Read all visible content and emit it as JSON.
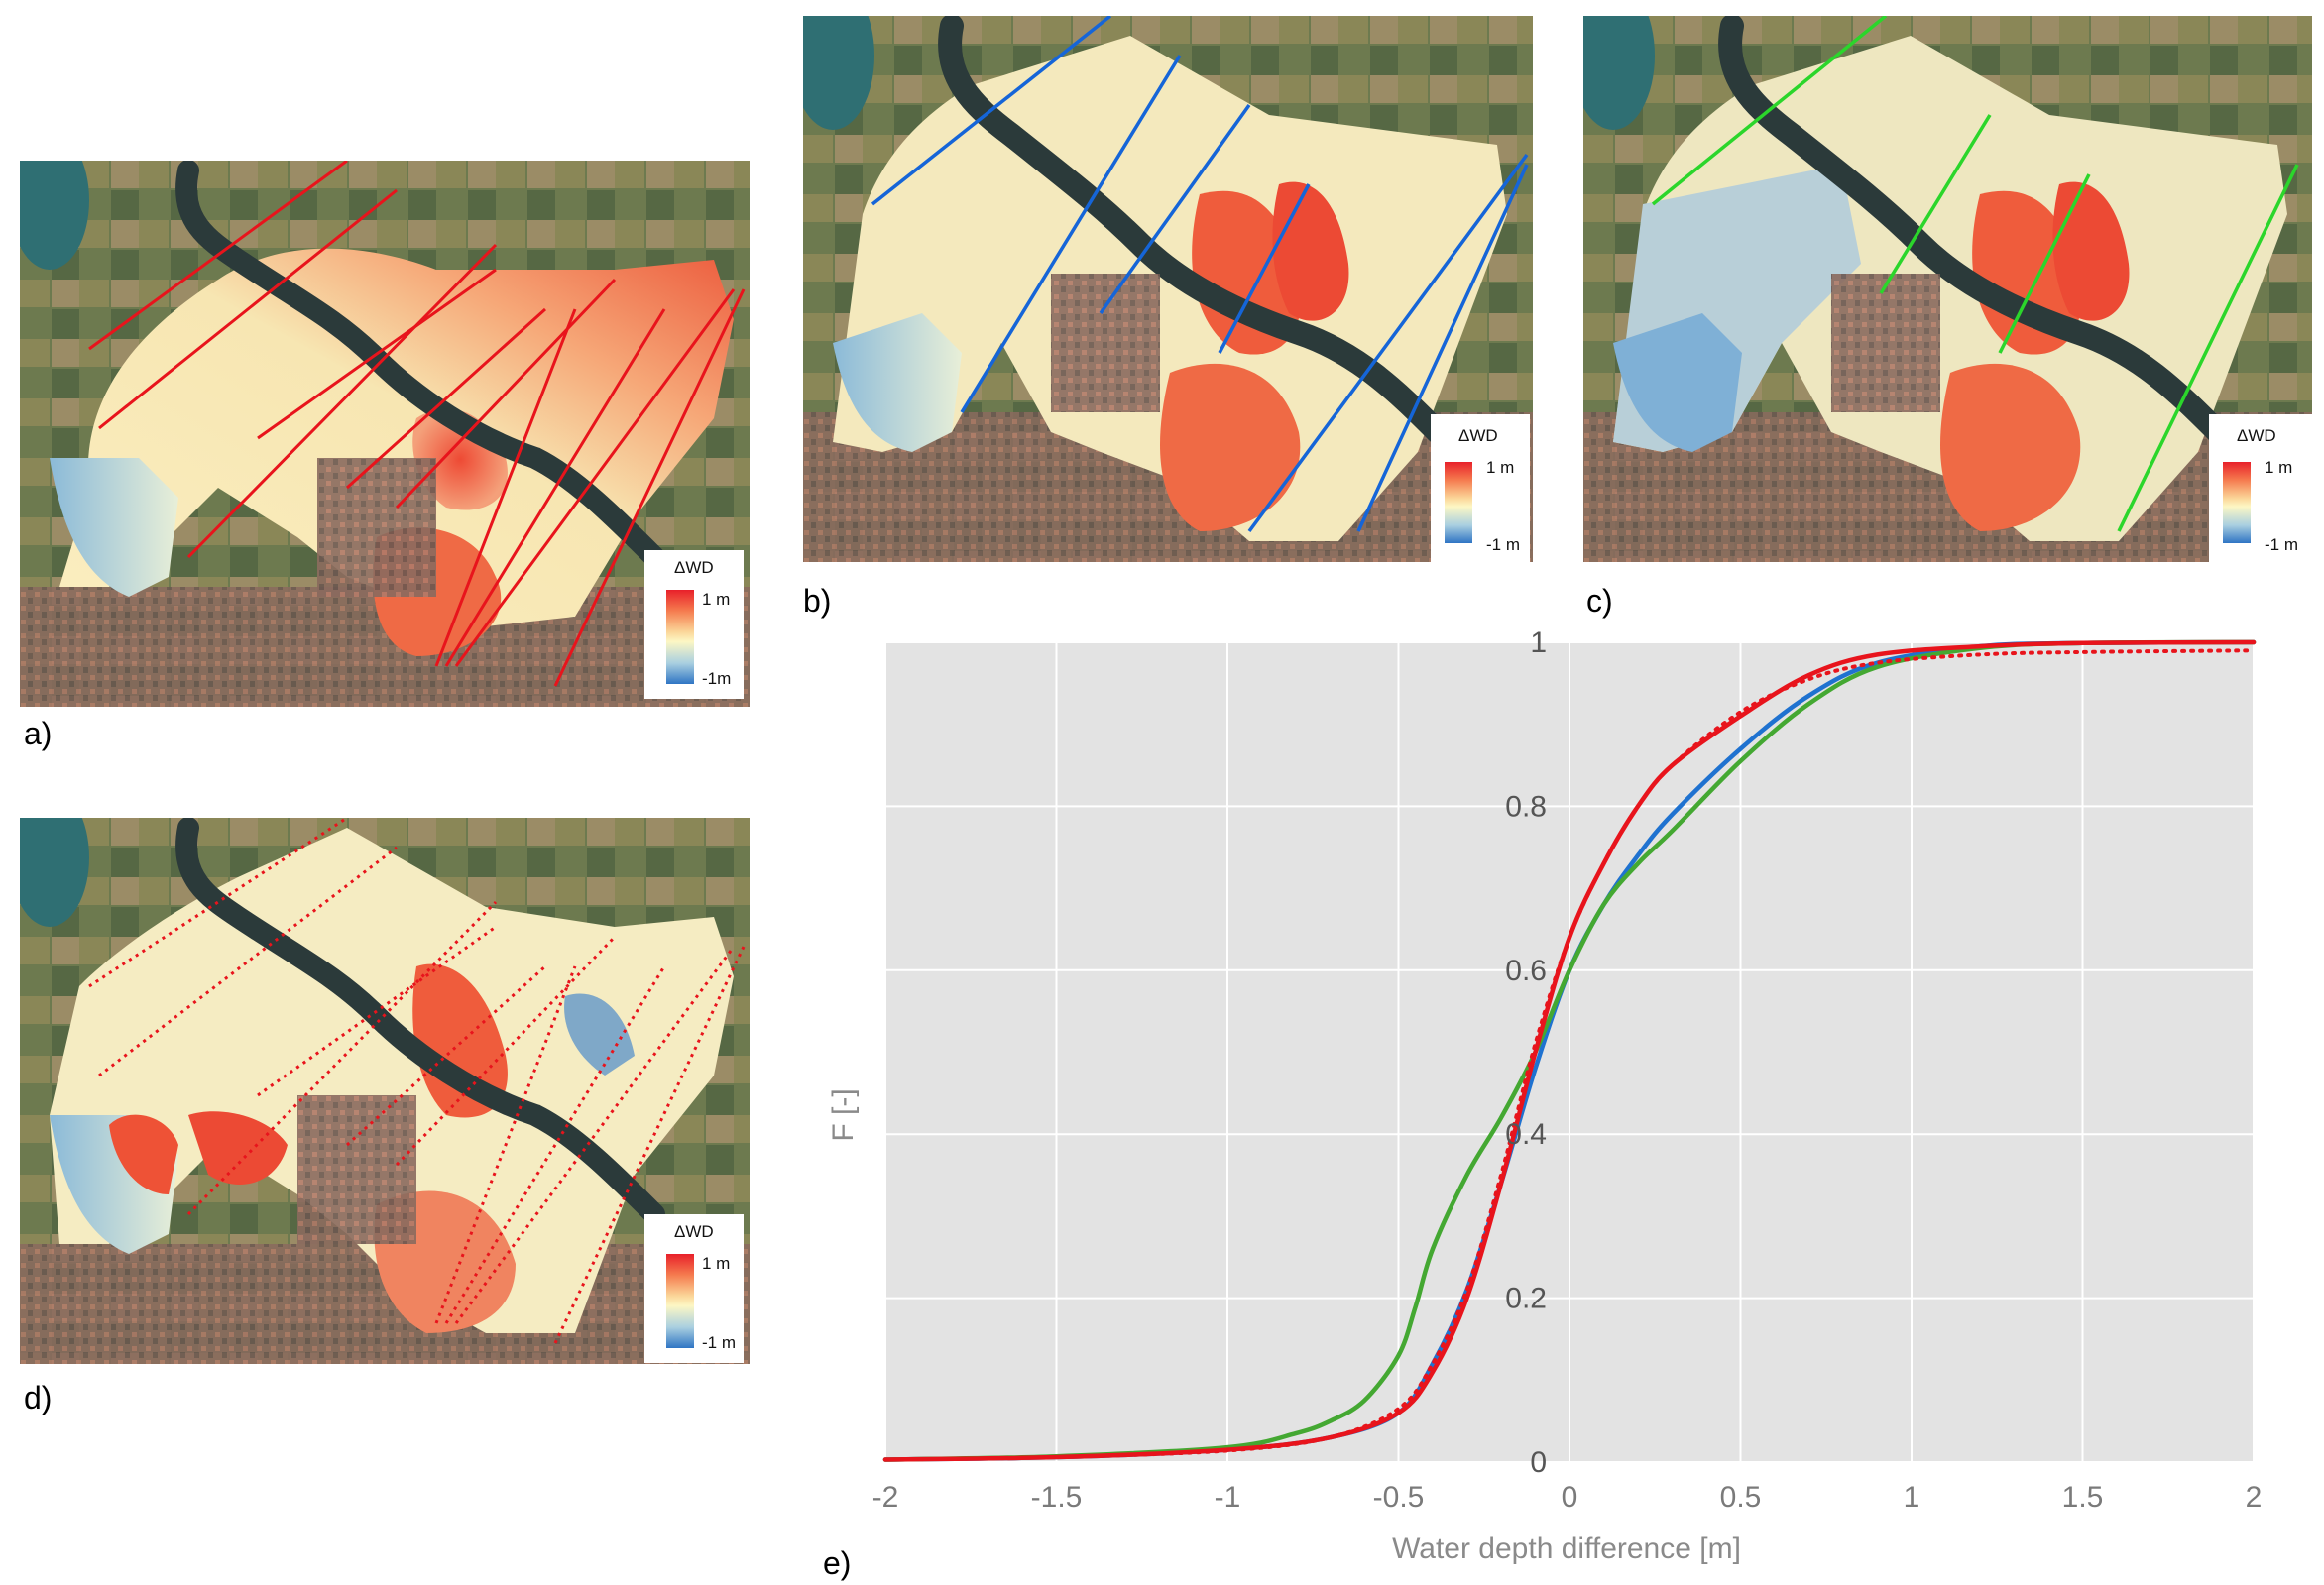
{
  "panels": [
    {
      "label": "a)",
      "line_color": "#e8141c",
      "line_style": "solid"
    },
    {
      "label": "b)",
      "line_color": "#1565d8",
      "line_style": "solid"
    },
    {
      "label": "c)",
      "line_color": "#2bd62b",
      "line_style": "solid"
    },
    {
      "label": "d)",
      "line_color": "#e8141c",
      "line_style": "dotted"
    }
  ],
  "legend": {
    "title": "ΔWD",
    "max_label": "1 m",
    "min_label_a": "-1m",
    "min_label_bc": "-1 m",
    "min_label_d": "-1 m"
  },
  "chart_label": "e)",
  "colors": {
    "red": "#e8141c",
    "blue": "#1f72d0",
    "green": "#44a832",
    "plot_bg": "#e3e3e3"
  },
  "chart_data": {
    "type": "line",
    "title": "",
    "xlabel": "Water depth difference [m]",
    "ylabel": "F [-]",
    "xlim": [
      -2,
      2
    ],
    "ylim": [
      0,
      1
    ],
    "xticks": [
      -2,
      -1.5,
      -1,
      -0.5,
      0,
      0.5,
      1,
      1.5,
      2
    ],
    "xtick_labels": [
      "-2",
      "-1.5",
      "-1",
      "-0.5",
      "0",
      "0.5",
      "1",
      "1.5",
      "2"
    ],
    "yticks": [
      0,
      0.2,
      0.4,
      0.6,
      0.8,
      1
    ],
    "ytick_labels": [
      "0",
      "0.2",
      "0.4",
      "0.6",
      "0.8",
      "1"
    ],
    "grid": true,
    "series": [
      {
        "name": "a",
        "color": "#e8141c",
        "style": "solid",
        "x": [
          -2,
          -1.5,
          -1,
          -0.7,
          -0.5,
          -0.4,
          -0.3,
          -0.2,
          -0.1,
          0,
          0.1,
          0.2,
          0.3,
          0.5,
          0.7,
          0.9,
          1.2,
          1.5,
          2
        ],
        "y": [
          0.003,
          0.006,
          0.015,
          0.03,
          0.06,
          0.11,
          0.2,
          0.34,
          0.5,
          0.64,
          0.73,
          0.8,
          0.85,
          0.91,
          0.96,
          0.985,
          0.995,
          0.999,
          1.0
        ]
      },
      {
        "name": "b",
        "color": "#1f72d0",
        "style": "solid",
        "x": [
          -2,
          -1.5,
          -1,
          -0.7,
          -0.5,
          -0.4,
          -0.3,
          -0.2,
          -0.1,
          0,
          0.1,
          0.2,
          0.3,
          0.5,
          0.7,
          0.9,
          1.2,
          1.5,
          2
        ],
        "y": [
          0.003,
          0.006,
          0.015,
          0.03,
          0.06,
          0.12,
          0.21,
          0.34,
          0.48,
          0.6,
          0.68,
          0.74,
          0.79,
          0.87,
          0.935,
          0.975,
          0.995,
          0.999,
          1.0
        ]
      },
      {
        "name": "c",
        "color": "#44a832",
        "style": "solid",
        "x": [
          -2,
          -1.5,
          -1,
          -0.8,
          -0.7,
          -0.6,
          -0.5,
          -0.45,
          -0.4,
          -0.3,
          -0.2,
          -0.1,
          0,
          0.1,
          0.2,
          0.3,
          0.5,
          0.7,
          0.9,
          1.2,
          1.5,
          2
        ],
        "y": [
          0.003,
          0.007,
          0.018,
          0.035,
          0.05,
          0.075,
          0.13,
          0.19,
          0.26,
          0.35,
          0.42,
          0.5,
          0.6,
          0.68,
          0.73,
          0.77,
          0.855,
          0.925,
          0.97,
          0.993,
          0.999,
          1.0
        ]
      },
      {
        "name": "d",
        "color": "#e8141c",
        "style": "dotted",
        "x": [
          -2,
          -1.5,
          -1,
          -0.7,
          -0.5,
          -0.4,
          -0.3,
          -0.2,
          -0.1,
          0,
          0.1,
          0.2,
          0.3,
          0.5,
          0.7,
          0.9,
          1.2,
          1.5,
          2
        ],
        "y": [
          0.003,
          0.006,
          0.014,
          0.03,
          0.065,
          0.12,
          0.21,
          0.35,
          0.51,
          0.64,
          0.73,
          0.8,
          0.85,
          0.915,
          0.955,
          0.975,
          0.985,
          0.988,
          0.99
        ]
      }
    ]
  }
}
